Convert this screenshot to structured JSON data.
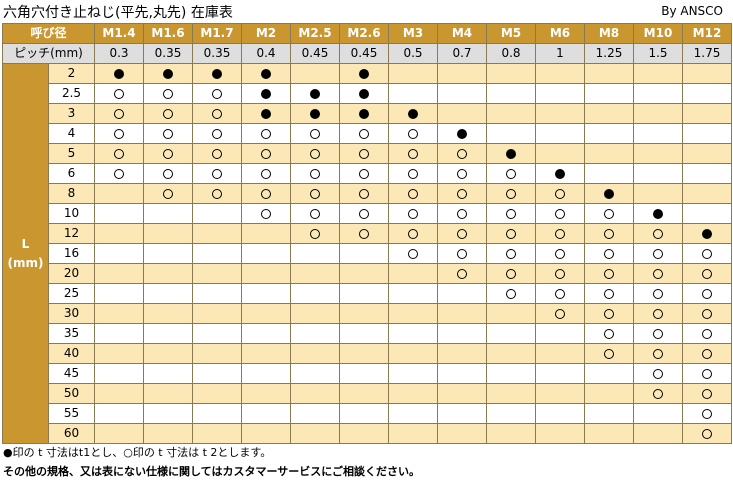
{
  "title": "六角穴付き止ねじ(平先,丸先) 在庫表",
  "byline": "By ANSCO",
  "table": {
    "size_header": "呼び径",
    "pitch_header": "ピッチ(mm)",
    "length_label_top": "L",
    "length_label_bottom": "(mm)",
    "sizes": [
      "M1.4",
      "M1.6",
      "M1.7",
      "M2",
      "M2.5",
      "M2.6",
      "M3",
      "M4",
      "M5",
      "M6",
      "M8",
      "M10",
      "M12"
    ],
    "pitches": [
      "0.3",
      "0.35",
      "0.35",
      "0.4",
      "0.45",
      "0.45",
      "0.5",
      "0.7",
      "0.8",
      "1",
      "1.25",
      "1.5",
      "1.75"
    ],
    "legend": {
      "filled": "●",
      "open": "○"
    },
    "rows": [
      {
        "length": "2",
        "marks": [
          "filled",
          "filled",
          "filled",
          "filled",
          "",
          "filled",
          "",
          "",
          "",
          "",
          "",
          "",
          ""
        ]
      },
      {
        "length": "2.5",
        "marks": [
          "open",
          "open",
          "open",
          "filled",
          "filled",
          "filled",
          "",
          "",
          "",
          "",
          "",
          "",
          ""
        ]
      },
      {
        "length": "3",
        "marks": [
          "open",
          "open",
          "open",
          "filled",
          "filled",
          "filled",
          "filled",
          "",
          "",
          "",
          "",
          "",
          ""
        ]
      },
      {
        "length": "4",
        "marks": [
          "open",
          "open",
          "open",
          "open",
          "open",
          "open",
          "open",
          "filled",
          "",
          "",
          "",
          "",
          ""
        ]
      },
      {
        "length": "5",
        "marks": [
          "open",
          "open",
          "open",
          "open",
          "open",
          "open",
          "open",
          "open",
          "filled",
          "",
          "",
          "",
          ""
        ]
      },
      {
        "length": "6",
        "marks": [
          "open",
          "open",
          "open",
          "open",
          "open",
          "open",
          "open",
          "open",
          "open",
          "filled",
          "",
          "",
          ""
        ]
      },
      {
        "length": "8",
        "marks": [
          "",
          "open",
          "open",
          "open",
          "open",
          "open",
          "open",
          "open",
          "open",
          "open",
          "filled",
          "",
          ""
        ]
      },
      {
        "length": "10",
        "marks": [
          "",
          "",
          "",
          "open",
          "open",
          "open",
          "open",
          "open",
          "open",
          "open",
          "open",
          "filled",
          ""
        ]
      },
      {
        "length": "12",
        "marks": [
          "",
          "",
          "",
          "",
          "open",
          "open",
          "open",
          "open",
          "open",
          "open",
          "open",
          "open",
          "filled"
        ]
      },
      {
        "length": "16",
        "marks": [
          "",
          "",
          "",
          "",
          "",
          "",
          "open",
          "open",
          "open",
          "open",
          "open",
          "open",
          "open"
        ]
      },
      {
        "length": "20",
        "marks": [
          "",
          "",
          "",
          "",
          "",
          "",
          "",
          "open",
          "open",
          "open",
          "open",
          "open",
          "open"
        ]
      },
      {
        "length": "25",
        "marks": [
          "",
          "",
          "",
          "",
          "",
          "",
          "",
          "",
          "open",
          "open",
          "open",
          "open",
          "open"
        ]
      },
      {
        "length": "30",
        "marks": [
          "",
          "",
          "",
          "",
          "",
          "",
          "",
          "",
          "",
          "open",
          "open",
          "open",
          "open"
        ]
      },
      {
        "length": "35",
        "marks": [
          "",
          "",
          "",
          "",
          "",
          "",
          "",
          "",
          "",
          "",
          "open",
          "open",
          "open"
        ]
      },
      {
        "length": "40",
        "marks": [
          "",
          "",
          "",
          "",
          "",
          "",
          "",
          "",
          "",
          "",
          "open",
          "open",
          "open"
        ]
      },
      {
        "length": "45",
        "marks": [
          "",
          "",
          "",
          "",
          "",
          "",
          "",
          "",
          "",
          "",
          "",
          "open",
          "open"
        ]
      },
      {
        "length": "50",
        "marks": [
          "",
          "",
          "",
          "",
          "",
          "",
          "",
          "",
          "",
          "",
          "",
          "open",
          "open"
        ]
      },
      {
        "length": "55",
        "marks": [
          "",
          "",
          "",
          "",
          "",
          "",
          "",
          "",
          "",
          "",
          "",
          "",
          "open"
        ]
      },
      {
        "length": "60",
        "marks": [
          "",
          "",
          "",
          "",
          "",
          "",
          "",
          "",
          "",
          "",
          "",
          "",
          "open"
        ]
      }
    ]
  },
  "notes": {
    "note1": "●印の t 寸法はt1とし、○印の t 寸法は t 2とします。",
    "note2": "その他の規格、又は表にない仕様に関してはカスタマーサービスにご相談ください。"
  }
}
